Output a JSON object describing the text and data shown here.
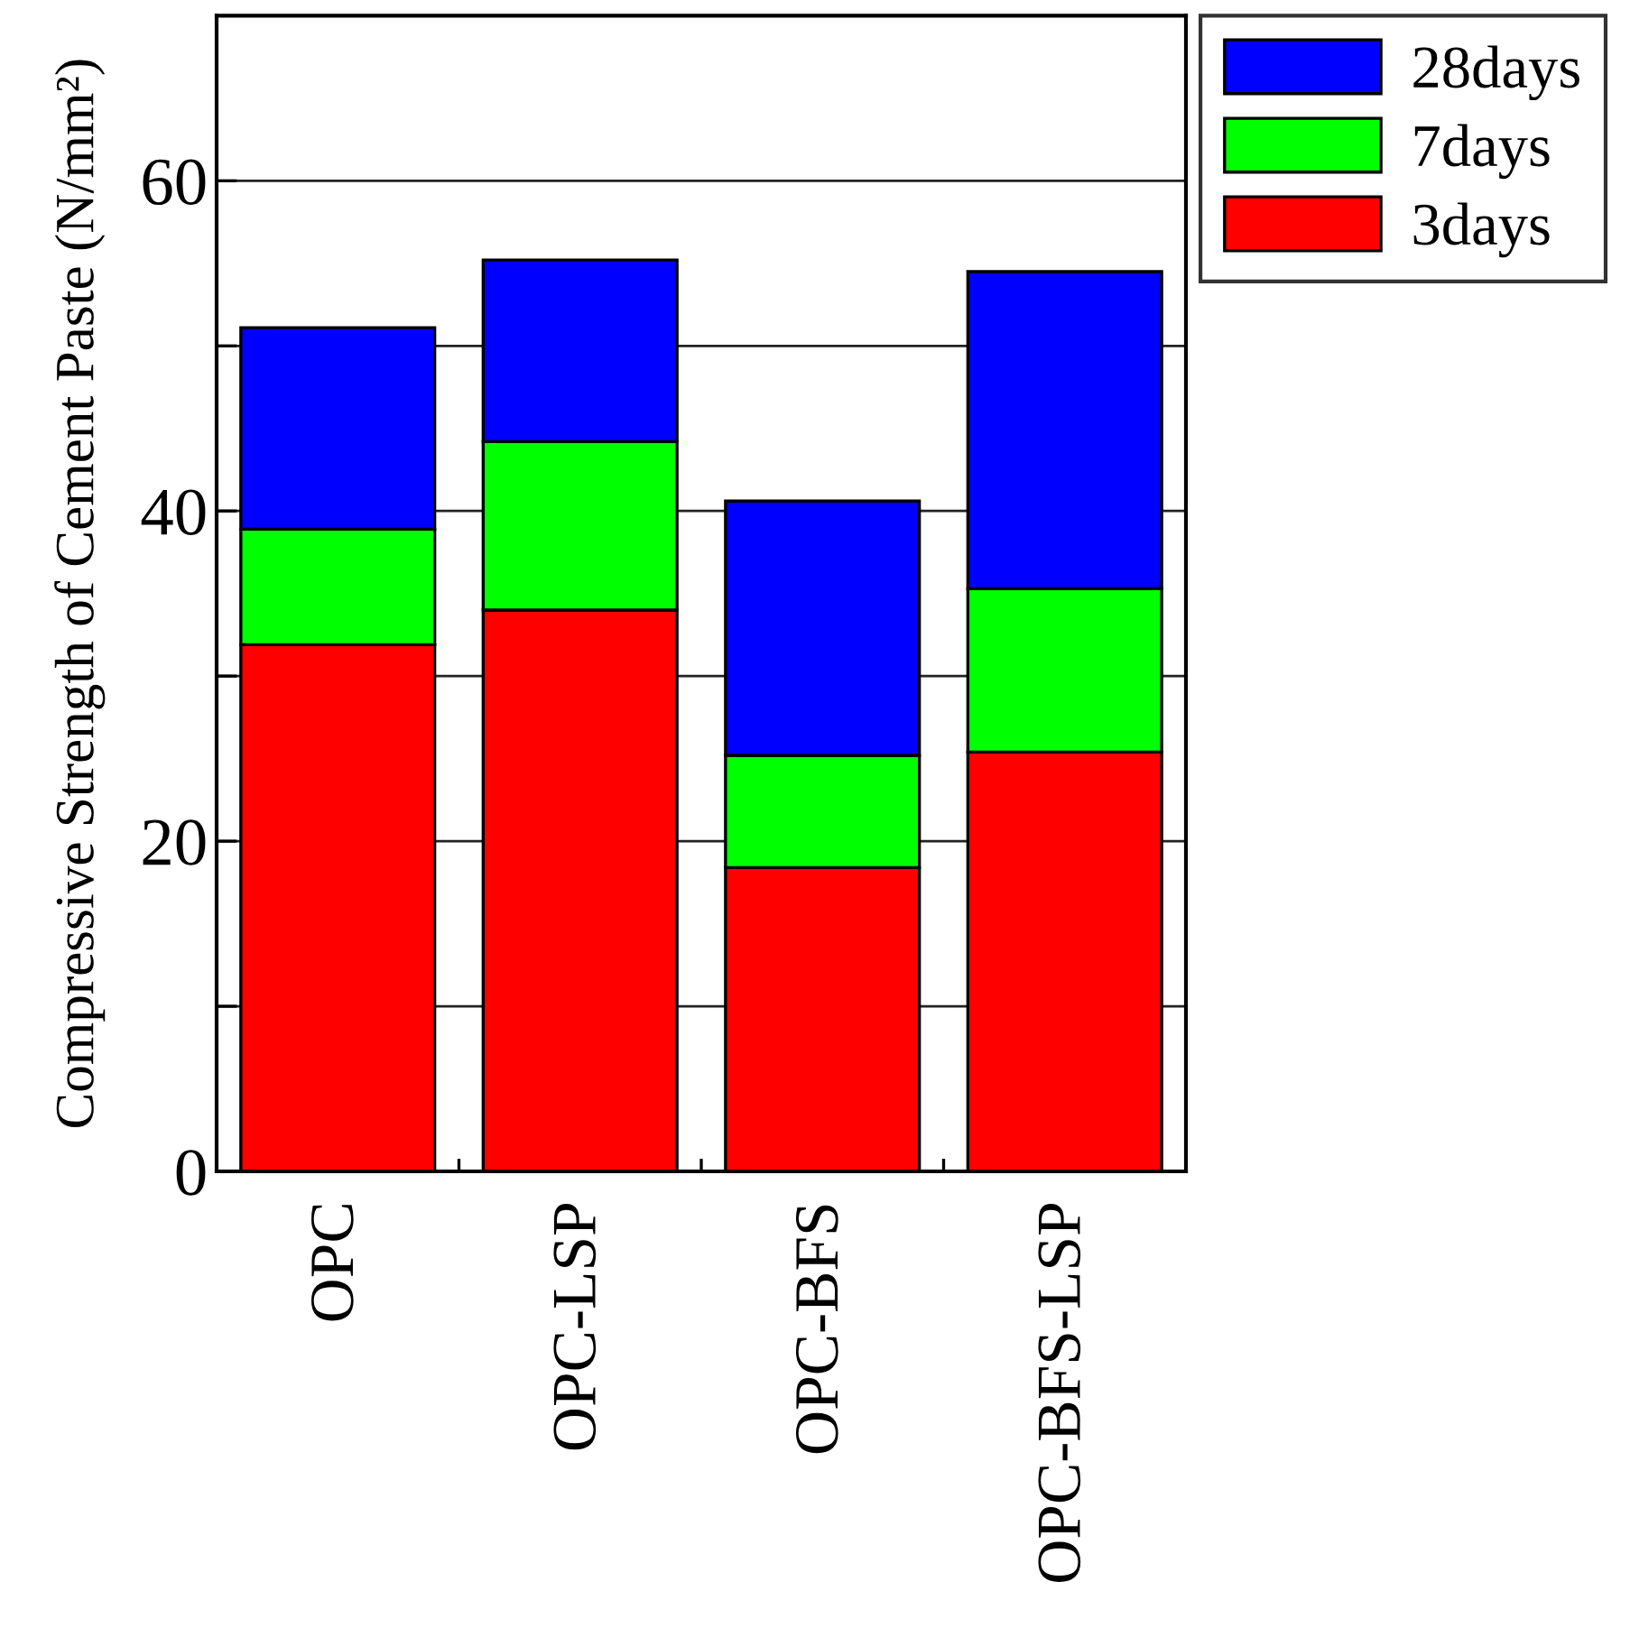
{
  "chart_data": {
    "type": "bar",
    "stacked": true,
    "ylabel": "Compressive Strength of Cement Paste (N/mm²)",
    "categories": [
      "OPC",
      "OPC-LSP",
      "OPC-BFS",
      "OPC-BFS-LSP"
    ],
    "series": [
      {
        "name": "3days",
        "color": "#ff0000",
        "values": [
          31.9,
          34.0,
          18.4,
          25.4
        ]
      },
      {
        "name": "7days",
        "color": "#00ff00",
        "values": [
          7.0,
          10.2,
          6.8,
          9.9
        ]
      },
      {
        "name": "28days",
        "color": "#0000ff",
        "values": [
          12.2,
          11.0,
          15.4,
          19.2
        ]
      }
    ],
    "ylim": [
      0,
      70
    ],
    "yticks": [
      0,
      {
        "value": 10,
        "label": null
      },
      20,
      {
        "value": 30,
        "label": null
      },
      40,
      {
        "value": 50,
        "label": null
      },
      60
    ],
    "grid": "y",
    "legend": "top right"
  }
}
